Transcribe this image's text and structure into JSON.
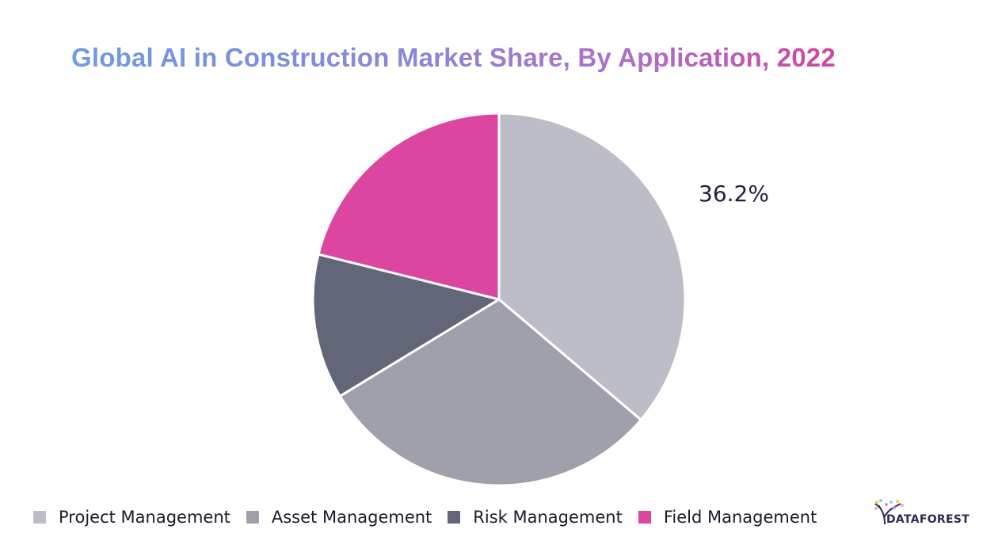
{
  "title": "Global AI in Construction Market Share, By Application, 2022",
  "data_label": "36.2%",
  "legend": [
    {
      "label": "Project Management",
      "color": "#bcbdc6"
    },
    {
      "label": "Asset Management",
      "color": "#9fa0ab"
    },
    {
      "label": "Risk Management",
      "color": "#636679"
    },
    {
      "label": "Field Management",
      "color": "#dc45a0"
    }
  ],
  "logo": {
    "text": "DATAFOREST"
  },
  "chart_data": {
    "type": "pie",
    "title": "Global AI in Construction Market Share, By Application, 2022",
    "categories": [
      "Project Management",
      "Asset Management",
      "Risk Management",
      "Field Management"
    ],
    "values": [
      36.2,
      30.1,
      12.6,
      21.1
    ],
    "colors": [
      "#bcbdc6",
      "#9fa0ab",
      "#636679",
      "#dc45a0"
    ],
    "data_labels": {
      "Project Management": "36.2%"
    },
    "legend_position": "bottom",
    "start_angle": "12 o'clock, clockwise"
  }
}
